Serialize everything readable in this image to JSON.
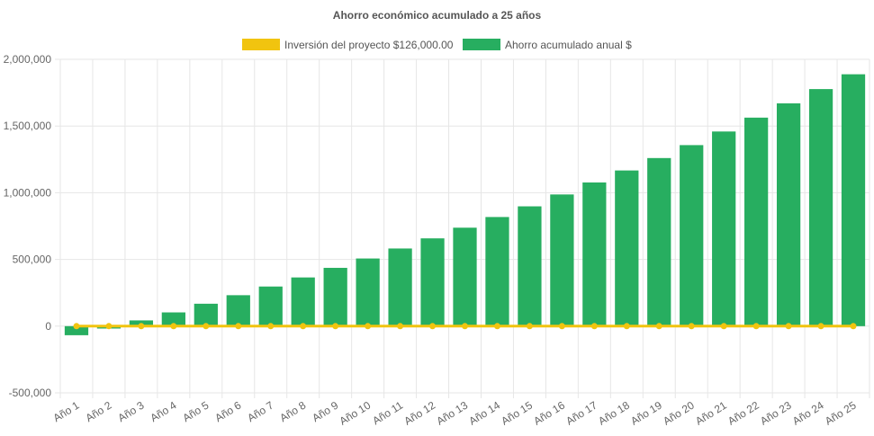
{
  "chart_data": {
    "type": "bar",
    "title": "Ahorro económico acumulado a 25 años",
    "xlabel": "",
    "ylabel": "",
    "ylim": [
      -500000,
      2000000
    ],
    "yticks": [
      2000000,
      1500000,
      1000000,
      500000,
      0,
      -500000
    ],
    "ytick_labels": [
      "2,000,000",
      "1,500,000",
      "1,000,000",
      "500,000",
      "0",
      "-500,000"
    ],
    "grid": true,
    "legend_position": "top",
    "categories": [
      "Año 1",
      "Año 2",
      "Año 3",
      "Año 4",
      "Año 5",
      "Año 6",
      "Año 7",
      "Año 8",
      "Año 9",
      "Año 10",
      "Año 11",
      "Año 12",
      "Año 13",
      "Año 14",
      "Año 15",
      "Año 16",
      "Año 17",
      "Año 18",
      "Año 19",
      "Año 20",
      "Año 21",
      "Año 22",
      "Año 23",
      "Año 24",
      "Año 25"
    ],
    "series": [
      {
        "name": "Inversión del proyecto $126,000.00",
        "type": "line",
        "color": "#f1c40f",
        "values": [
          0,
          0,
          0,
          0,
          0,
          0,
          0,
          0,
          0,
          0,
          0,
          0,
          0,
          0,
          0,
          0,
          0,
          0,
          0,
          0,
          0,
          0,
          0,
          0,
          0
        ]
      },
      {
        "name": "Ahorro acumulado anual $",
        "type": "bar",
        "color": "#27ae60",
        "values": [
          -68000,
          -18000,
          43000,
          103000,
          168000,
          232000,
          297000,
          365000,
          437000,
          507000,
          582000,
          658000,
          738000,
          818000,
          898000,
          987000,
          1077000,
          1167000,
          1260000,
          1357000,
          1459000,
          1563000,
          1670000,
          1777000,
          1888000
        ]
      }
    ]
  }
}
